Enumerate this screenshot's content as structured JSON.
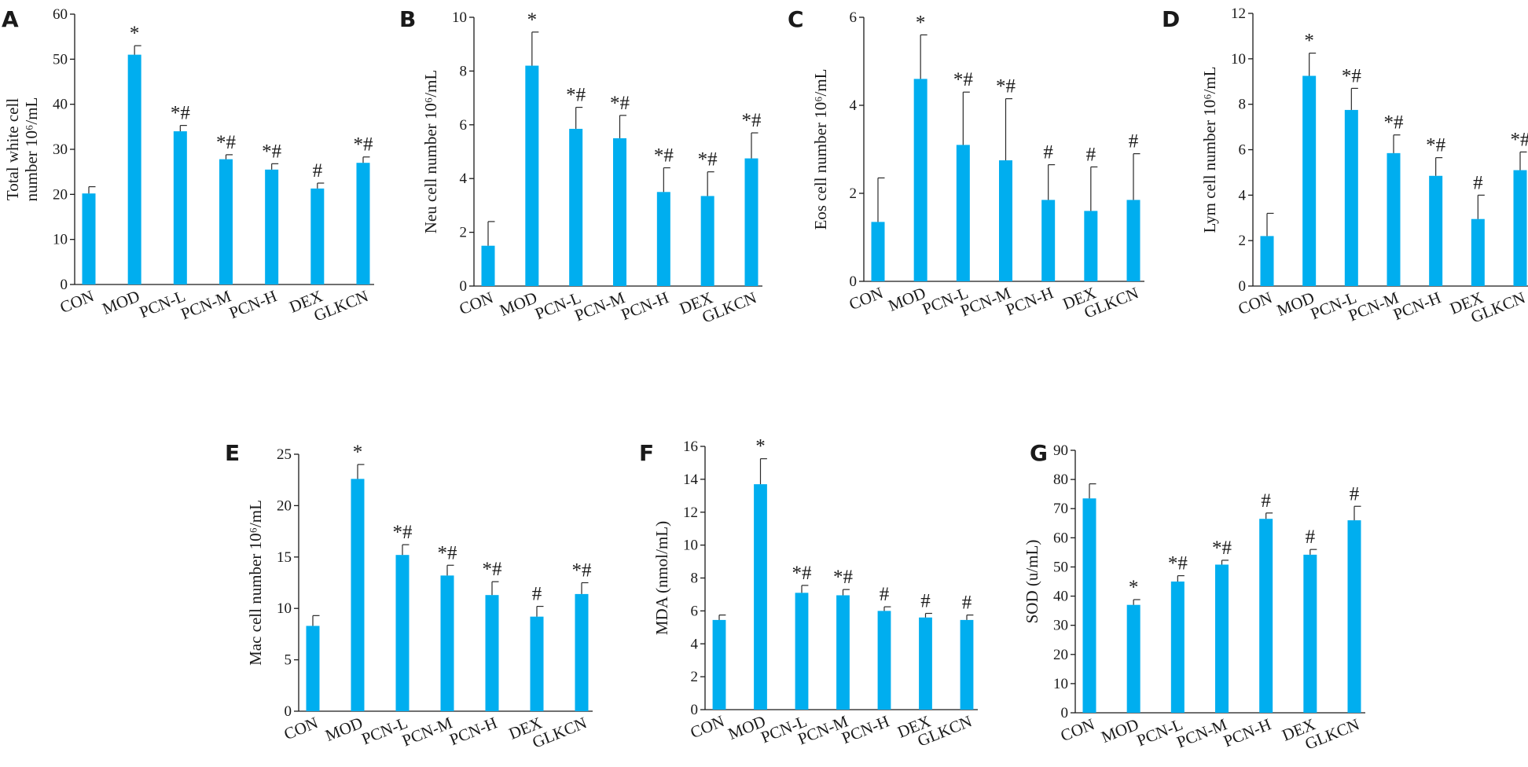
{
  "chart_data": [
    {
      "type": "bar",
      "panel": "A",
      "ylabel": [
        "Total white cell",
        "number 10⁶/mL"
      ],
      "categories": [
        "CON",
        "MOD",
        "PCN-L",
        "PCN-M",
        "PCN-H",
        "DEX",
        "GLKCN"
      ],
      "values": [
        20.2,
        51.0,
        34.0,
        27.8,
        25.5,
        21.3,
        27.0
      ],
      "errors": [
        1.5,
        2.0,
        1.3,
        1.0,
        1.3,
        1.2,
        1.3
      ],
      "annotations": [
        "",
        "*",
        "*#",
        "*#",
        "*#",
        "#",
        "*#"
      ],
      "ylim": [
        0,
        60
      ],
      "yticks": [
        0,
        10,
        20,
        30,
        40,
        50,
        60
      ],
      "yticklabels": [
        "0",
        "10",
        "20",
        "30",
        "40",
        "50",
        "60"
      ],
      "color": "#00aeef"
    },
    {
      "type": "bar",
      "panel": "B",
      "ylabel": [
        "Neu cell number 10⁶/mL"
      ],
      "categories": [
        "CON",
        "MOD",
        "PCN-L",
        "PCN-M",
        "PCN-H",
        "DEX",
        "GLKCN"
      ],
      "values": [
        1.5,
        8.2,
        5.85,
        5.5,
        3.5,
        3.35,
        4.75
      ],
      "errors": [
        0.9,
        1.25,
        0.8,
        0.85,
        0.9,
        0.9,
        0.95
      ],
      "annotations": [
        "",
        "*",
        "*#",
        "*#",
        "*#",
        "*#",
        "*#"
      ],
      "ylim": [
        0,
        10
      ],
      "yticks": [
        0,
        2,
        4,
        6,
        8,
        10
      ],
      "yticklabels": [
        "0",
        "2",
        "4",
        "6",
        "8",
        "10"
      ],
      "color": "#00aeef"
    },
    {
      "type": "bar",
      "panel": "C",
      "ylabel": [
        "Eos cell number 10⁶/mL"
      ],
      "categories": [
        "CON",
        "MOD",
        "PCN-L",
        "PCN-M",
        "PCN-H",
        "DEX",
        "GLKCN"
      ],
      "values": [
        1.35,
        4.6,
        3.1,
        2.75,
        1.85,
        1.6,
        1.85
      ],
      "errors": [
        1.0,
        1.0,
        1.2,
        1.4,
        0.8,
        1.0,
        1.05
      ],
      "annotations": [
        "",
        "*",
        "*#",
        "*#",
        "#",
        "#",
        "#"
      ],
      "ylim": [
        0,
        6
      ],
      "yticks": [
        0,
        2,
        4,
        6
      ],
      "yticklabels": [
        "0",
        "2",
        "4",
        "6"
      ],
      "color": "#00aeef"
    },
    {
      "type": "bar",
      "panel": "D",
      "ylabel": [
        "Lym cell number 10⁶/mL"
      ],
      "categories": [
        "CON",
        "MOD",
        "PCN-L",
        "PCN-M",
        "PCN-H",
        "DEX",
        "GLKCN"
      ],
      "values": [
        2.2,
        9.25,
        7.75,
        5.85,
        4.85,
        2.95,
        5.1
      ],
      "errors": [
        1.0,
        1.0,
        0.95,
        0.8,
        0.8,
        1.05,
        0.8
      ],
      "annotations": [
        "",
        "*",
        "*#",
        "*#",
        "*#",
        "#",
        "*#"
      ],
      "ylim": [
        0,
        12
      ],
      "yticks": [
        0,
        2,
        4,
        6,
        8,
        10,
        12
      ],
      "yticklabels": [
        "0",
        "2",
        "4",
        "6",
        "8",
        "10",
        "12"
      ],
      "color": "#00aeef"
    },
    {
      "type": "bar",
      "panel": "E",
      "ylabel": [
        "Mac cell number 10⁶/mL"
      ],
      "categories": [
        "CON",
        "MOD",
        "PCN-L",
        "PCN-M",
        "PCN-H",
        "DEX",
        "GLKCN"
      ],
      "values": [
        8.3,
        22.6,
        15.2,
        13.2,
        11.3,
        9.2,
        11.4
      ],
      "errors": [
        1.0,
        1.4,
        1.0,
        1.0,
        1.3,
        1.0,
        1.1
      ],
      "annotations": [
        "",
        "*",
        "*#",
        "*#",
        "*#",
        "#",
        "*#"
      ],
      "ylim": [
        0,
        25
      ],
      "yticks": [
        0,
        5,
        10,
        15,
        20,
        25
      ],
      "yticklabels": [
        "0",
        "5",
        "10",
        "15",
        "20",
        "25"
      ],
      "color": "#00aeef"
    },
    {
      "type": "bar",
      "panel": "F",
      "ylabel": [
        "MDA (nmol/mL)"
      ],
      "categories": [
        "CON",
        "MOD",
        "PCN-L",
        "PCN-M",
        "PCN-H",
        "DEX",
        "GLKCN"
      ],
      "values": [
        5.45,
        13.7,
        7.1,
        6.95,
        6.0,
        5.6,
        5.45
      ],
      "errors": [
        0.3,
        1.55,
        0.45,
        0.35,
        0.25,
        0.25,
        0.3
      ],
      "annotations": [
        "",
        "*",
        "*#",
        "*#",
        "#",
        "#",
        "#"
      ],
      "ylim": [
        0,
        16
      ],
      "yticks": [
        0,
        2,
        4,
        6,
        8,
        10,
        12,
        14,
        16
      ],
      "yticklabels": [
        "0",
        "2",
        "4",
        "6",
        "8",
        "10",
        "12",
        "14",
        "16"
      ],
      "color": "#00aeef"
    },
    {
      "type": "bar",
      "panel": "G",
      "ylabel": [
        "SOD (u/mL)"
      ],
      "categories": [
        "CON",
        "MOD",
        "PCN-L",
        "PCN-M",
        "PCN-H",
        "DEX",
        "GLKCN"
      ],
      "values": [
        73.5,
        37.0,
        45.0,
        50.8,
        66.5,
        54.2,
        66.0
      ],
      "errors": [
        5.0,
        1.8,
        2.0,
        1.5,
        2.0,
        1.8,
        4.8
      ],
      "annotations": [
        "",
        "*",
        "*#",
        "*#",
        "#",
        "#",
        "#"
      ],
      "ylim": [
        0,
        90
      ],
      "yticks": [
        0,
        10,
        20,
        30,
        40,
        50,
        60,
        70,
        80,
        90
      ],
      "yticklabels": [
        "0",
        "10",
        "20",
        "30",
        "40",
        "50",
        "60",
        "70",
        "80",
        "90"
      ],
      "color": "#00aeef"
    }
  ]
}
